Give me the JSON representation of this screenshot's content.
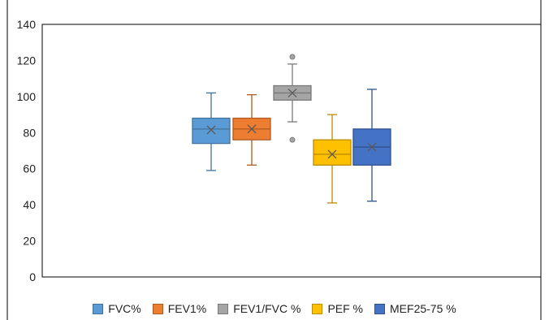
{
  "chart_data": {
    "type": "boxplot",
    "title": "",
    "xlabel": "",
    "ylabel": "",
    "ylim": [
      0,
      140
    ],
    "y_ticks": [
      0,
      20,
      40,
      60,
      80,
      100,
      120,
      140
    ],
    "grid": false,
    "legend_position": "bottom",
    "series": [
      {
        "name": "FVC%",
        "color": "#5b9bd5",
        "stroke": "#41719c",
        "min": 59,
        "q1": 74,
        "median": 82,
        "q3": 88,
        "max": 102,
        "mean": 81.5,
        "outliers": []
      },
      {
        "name": "FEV1%",
        "color": "#ed7d31",
        "stroke": "#ae5a21",
        "min": 62,
        "q1": 76,
        "median": 82,
        "q3": 88,
        "max": 101,
        "mean": 82,
        "outliers": []
      },
      {
        "name": "FEV1/FVC %",
        "color": "#a5a5a5",
        "stroke": "#7a7a7a",
        "min": 86,
        "q1": 98,
        "median": 102,
        "q3": 106,
        "max": 118,
        "mean": 102,
        "outliers": [
          122,
          76
        ]
      },
      {
        "name": "PEF %",
        "color": "#ffc000",
        "stroke": "#bc8c00",
        "min": 41,
        "q1": 62,
        "median": 68,
        "q3": 76,
        "max": 90,
        "mean": 68,
        "outliers": []
      },
      {
        "name": "MEF25-75 %",
        "color": "#4472c4",
        "stroke": "#2f528f",
        "min": 42,
        "q1": 62,
        "median": 72,
        "q3": 82,
        "max": 104,
        "mean": 72,
        "outliers": []
      }
    ]
  }
}
